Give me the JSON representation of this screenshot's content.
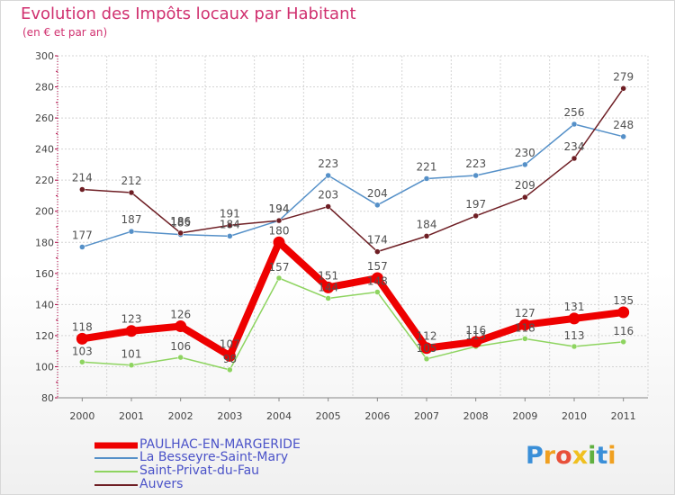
{
  "title": "Evolution des Impôts locaux par Habitant",
  "subtitle": "(en € et par an)",
  "chart_data": {
    "type": "line",
    "title": "Evolution des Impôts locaux par Habitant",
    "subtitle": "(en € et par an)",
    "xlabel": "",
    "ylabel": "",
    "x": [
      "2000",
      "2001",
      "2002",
      "2003",
      "2004",
      "2005",
      "2006",
      "2007",
      "2008",
      "2009",
      "2010",
      "2011"
    ],
    "ylim": [
      80,
      300
    ],
    "yticks": [
      80,
      100,
      120,
      140,
      160,
      180,
      200,
      220,
      240,
      260,
      280,
      300
    ],
    "grid": true,
    "legend_position": "bottom",
    "series": [
      {
        "name": "PAULHAC-EN-MARGERIDE",
        "color": "#ee0000",
        "values": [
          118,
          123,
          126,
          107,
          180,
          151,
          157,
          112,
          116,
          127,
          131,
          135
        ]
      },
      {
        "name": "La Besseyre-Saint-Mary",
        "color": "#5590c8",
        "values": [
          177,
          187,
          185,
          184,
          194,
          223,
          204,
          221,
          223,
          230,
          256,
          248
        ]
      },
      {
        "name": "Saint-Privat-du-Fau",
        "color": "#8ed460",
        "values": [
          103,
          101,
          106,
          98,
          157,
          144,
          148,
          105,
          113,
          118,
          113,
          116
        ]
      },
      {
        "name": "Auvers",
        "color": "#6e1e24",
        "values": [
          214,
          212,
          186,
          191,
          194,
          203,
          174,
          184,
          197,
          209,
          234,
          279
        ]
      }
    ]
  },
  "legend": [
    {
      "label": "PAULHAC-EN-MARGERIDE",
      "color": "#ee0000"
    },
    {
      "label": "La Besseyre-Saint-Mary",
      "color": "#5590c8"
    },
    {
      "label": "Saint-Privat-du-Fau",
      "color": "#8ed460"
    },
    {
      "label": "Auvers",
      "color": "#6e1e24"
    }
  ],
  "logo": {
    "text": "Proxiti",
    "letters": [
      {
        "ch": "P",
        "color": "#3a8fd8"
      },
      {
        "ch": "r",
        "color": "#f0a020"
      },
      {
        "ch": "o",
        "color": "#e8503a"
      },
      {
        "ch": "x",
        "color": "#f0c020"
      },
      {
        "ch": "i",
        "color": "#60b040"
      },
      {
        "ch": "t",
        "color": "#3a8fd8"
      },
      {
        "ch": "i",
        "color": "#f0a020"
      }
    ]
  }
}
